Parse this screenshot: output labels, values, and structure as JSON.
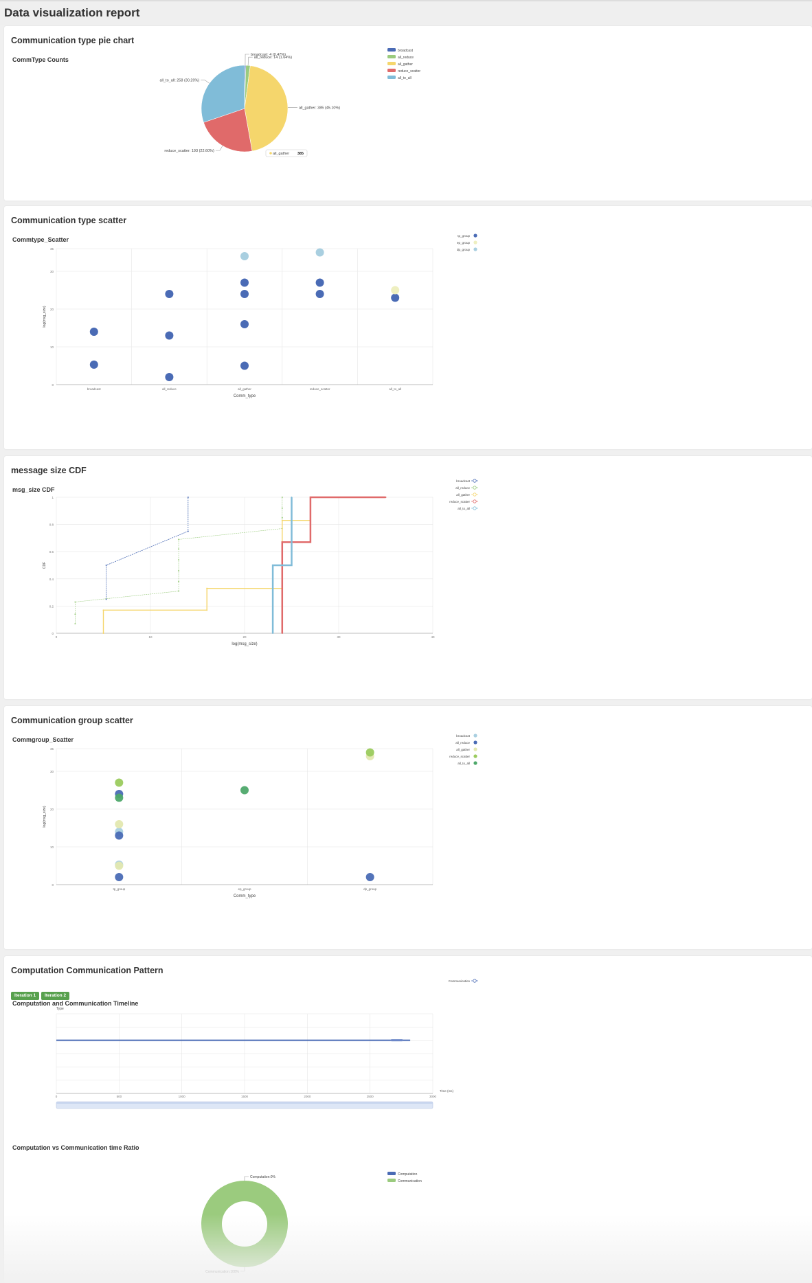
{
  "page": {
    "title": "Data visualization report"
  },
  "colors": {
    "blue": "#4a6bb5",
    "green": "#9bcb7e",
    "yellow": "#f5d66c",
    "red": "#e06a6a",
    "cyan": "#80bcd8",
    "lightcyan": "#a9cfe0",
    "lightyellow": "#eeefc0",
    "darkgreen": "#4ea86a"
  },
  "pie_card": {
    "title": "Communication type pie chart",
    "subtitle": "CommType Counts",
    "legend": [
      "broadcast",
      "all_reduce",
      "all_gather",
      "reduce_scatter",
      "all_to_all"
    ],
    "slice_labels": [
      "broadcast: 4 (0.47%)",
      "all_reduce: 14 (1.64%)",
      "all_gather: 385 (45.10%)",
      "reduce_scatter: 193 (22.60%)",
      "all_to_all: 258 (30.20%)"
    ],
    "tooltip": {
      "name": "all_gather",
      "value": "385"
    }
  },
  "scatter_card": {
    "title": "Communication type scatter",
    "subtitle": "Commtype_Scatter",
    "legend": [
      "tp_group",
      "ep_group",
      "dp_group"
    ],
    "xlabel": "Comm_type",
    "ylabel": "log(msg_size)",
    "y_ticks": [
      "0",
      "10",
      "20",
      "30",
      "35"
    ],
    "x_ticks": [
      "broadcast",
      "all_reduce",
      "all_gather",
      "reduce_scatter",
      "all_to_all"
    ]
  },
  "cdf_card": {
    "title": "message size CDF",
    "subtitle": "msg_size CDF",
    "legend": [
      "broadcast",
      "all_reduce",
      "all_gather",
      "reduce_scatter",
      "all_to_all"
    ],
    "xlabel": "log(msg_size)",
    "ylabel": "CDF",
    "x_ticks": [
      "0",
      "10",
      "20",
      "30",
      "40"
    ],
    "y_ticks": [
      "0",
      "0.2",
      "0.4",
      "0.6",
      "0.8",
      "1"
    ]
  },
  "group_card": {
    "title": "Communication group scatter",
    "subtitle": "Commgroup_Scatter",
    "legend": [
      "broadcast",
      "all_reduce",
      "all_gather",
      "reduce_scatter",
      "all_to_all"
    ],
    "xlabel": "Comm_type",
    "ylabel": "log(msg_size)",
    "x_ticks": [
      "tp_group",
      "ep_group",
      "dp_group"
    ],
    "y_ticks": [
      "0",
      "10",
      "20",
      "30",
      "35"
    ]
  },
  "pattern_card": {
    "title": "Computation Communication Pattern",
    "buttons": [
      "Iteration 1",
      "Iteration 2"
    ],
    "timeline_title": "Computation and Communication Timeline",
    "timeline_legend": "Communication",
    "y_axis_name": "Type",
    "x_axis_name": "Time (ms)",
    "x_ticks": [
      "0",
      "500",
      "1000",
      "1500",
      "2000",
      "2500",
      "3000"
    ],
    "ratio_title": "Computation vs Communication time Ratio",
    "ratio_legend": [
      "Computation",
      "Communication"
    ],
    "ratio_labels": [
      "Computation:0%",
      "Communication:100%"
    ]
  },
  "chart_data": [
    {
      "type": "pie",
      "title": "CommType Counts",
      "categories": [
        "broadcast",
        "all_reduce",
        "all_gather",
        "reduce_scatter",
        "all_to_all"
      ],
      "values": [
        4,
        14,
        385,
        193,
        258
      ],
      "colors": [
        "#4a6bb5",
        "#9bcb7e",
        "#f5d66c",
        "#e06a6a",
        "#80bcd8"
      ]
    },
    {
      "type": "scatter",
      "title": "Commtype_Scatter",
      "xlabel": "Comm_type",
      "ylabel": "log(msg_size)",
      "categories": [
        "broadcast",
        "all_reduce",
        "all_gather",
        "reduce_scatter",
        "all_to_all"
      ],
      "ylim": [
        0,
        36
      ],
      "series": [
        {
          "name": "tp_group",
          "color": "#4a6bb5",
          "points": [
            [
              "broadcast",
              14
            ],
            [
              "broadcast",
              5.3
            ],
            [
              "all_reduce",
              24
            ],
            [
              "all_reduce",
              13
            ],
            [
              "all_reduce",
              2
            ],
            [
              "all_gather",
              27
            ],
            [
              "all_gather",
              24
            ],
            [
              "all_gather",
              16
            ],
            [
              "all_gather",
              5
            ],
            [
              "reduce_scatter",
              27
            ],
            [
              "reduce_scatter",
              24
            ],
            [
              "all_to_all",
              23
            ]
          ]
        },
        {
          "name": "ep_group",
          "color": "#eeefc0",
          "points": [
            [
              "all_to_all",
              25
            ]
          ]
        },
        {
          "name": "dp_group",
          "color": "#a9cfe0",
          "points": [
            [
              "all_gather",
              34
            ],
            [
              "reduce_scatter",
              35
            ]
          ]
        }
      ]
    },
    {
      "type": "line",
      "title": "msg_size CDF",
      "xlabel": "log(msg_size)",
      "ylabel": "CDF",
      "xlim": [
        0,
        40
      ],
      "ylim": [
        0,
        1
      ],
      "series": [
        {
          "name": "broadcast",
          "color": "#4a6bb5",
          "points": [
            [
              5.3,
              0.25
            ],
            [
              5.3,
              0.5
            ],
            [
              14,
              0.75
            ],
            [
              14,
              1
            ]
          ]
        },
        {
          "name": "all_reduce",
          "color": "#9bcb7e",
          "points": [
            [
              2,
              0.07
            ],
            [
              2,
              0.14
            ],
            [
              2,
              0.23
            ],
            [
              13,
              0.31
            ],
            [
              13,
              0.38
            ],
            [
              13,
              0.46
            ],
            [
              13,
              0.54
            ],
            [
              13,
              0.62
            ],
            [
              13,
              0.69
            ],
            [
              24,
              0.77
            ],
            [
              24,
              0.85
            ],
            [
              24,
              0.92
            ],
            [
              24,
              1
            ]
          ]
        },
        {
          "name": "all_gather",
          "color": "#f5d66c",
          "points": [
            [
              5,
              0
            ],
            [
              5,
              0.17
            ],
            [
              16,
              0.17
            ],
            [
              16,
              0.33
            ],
            [
              24,
              0.33
            ],
            [
              24,
              0.67
            ],
            [
              24,
              0.83
            ],
            [
              27,
              0.83
            ],
            [
              27,
              1
            ],
            [
              34,
              1
            ]
          ]
        },
        {
          "name": "reduce_scatter",
          "color": "#e06a6a",
          "points": [
            [
              24,
              0
            ],
            [
              24,
              0.67
            ],
            [
              27,
              0.67
            ],
            [
              27,
              1
            ],
            [
              35,
              1
            ]
          ]
        },
        {
          "name": "all_to_all",
          "color": "#80bcd8",
          "points": [
            [
              23,
              0
            ],
            [
              23,
              0.5
            ],
            [
              25,
              0.5
            ],
            [
              25,
              1
            ]
          ]
        }
      ]
    },
    {
      "type": "scatter",
      "title": "Commgroup_Scatter",
      "xlabel": "Comm_type",
      "ylabel": "log(msg_size)",
      "categories": [
        "tp_group",
        "ep_group",
        "dp_group"
      ],
      "ylim": [
        0,
        36
      ],
      "series": [
        {
          "name": "broadcast",
          "color": "#a9cfe0",
          "points": [
            [
              "tp_group",
              14
            ],
            [
              "tp_group",
              5.3
            ]
          ]
        },
        {
          "name": "all_reduce",
          "color": "#4a6bb5",
          "points": [
            [
              "tp_group",
              24
            ],
            [
              "tp_group",
              13
            ],
            [
              "tp_group",
              2
            ],
            [
              "dp_group",
              2
            ]
          ]
        },
        {
          "name": "all_gather",
          "color": "#e3e8b0",
          "points": [
            [
              "tp_group",
              16
            ],
            [
              "tp_group",
              5
            ],
            [
              "dp_group",
              34
            ]
          ]
        },
        {
          "name": "reduce_scatter",
          "color": "#9bcb5e",
          "points": [
            [
              "tp_group",
              27
            ],
            [
              "dp_group",
              35
            ]
          ]
        },
        {
          "name": "all_to_all",
          "color": "#4ea86a",
          "points": [
            [
              "tp_group",
              23
            ],
            [
              "ep_group",
              25
            ]
          ]
        }
      ]
    },
    {
      "type": "line",
      "title": "Computation and Communication Timeline",
      "xlabel": "Time (ms)",
      "ylabel": "Type",
      "xlim": [
        0,
        3000
      ],
      "series": [
        {
          "name": "Communication",
          "color": "#4a6bb5",
          "points": [
            [
              0,
              "Communication"
            ],
            [
              2820,
              "Communication"
            ]
          ]
        }
      ]
    },
    {
      "type": "pie",
      "title": "Computation vs Communication time Ratio",
      "categories": [
        "Computation",
        "Communication"
      ],
      "values": [
        0,
        100
      ],
      "colors": [
        "#4a6bb5",
        "#9bcb7e"
      ]
    }
  ]
}
